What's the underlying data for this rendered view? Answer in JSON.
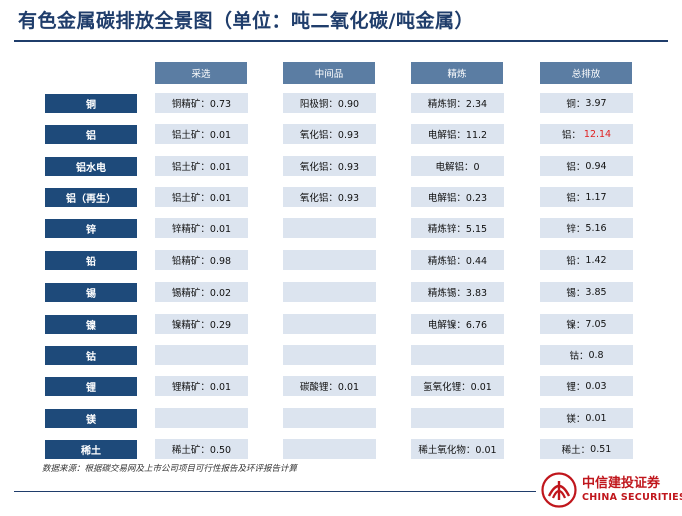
{
  "title": "有色金属碳排放全景图（单位：吨二氧化碳/吨金属）",
  "columns": [
    "采选",
    "中间品",
    "精炼",
    "总排放"
  ],
  "rows": [
    {
      "label": "铜",
      "mining": "铜精矿：0.73",
      "intermediate": "阳极铜：0.90",
      "refining": "精炼铜：2.34",
      "total_name": "铜：",
      "total_value": "3.97"
    },
    {
      "label": "铝",
      "mining": "铝土矿：0.01",
      "intermediate": "氧化铝：0.93",
      "refining": "电解铝：11.2",
      "total_name": "铝：",
      "total_value": "12.14"
    },
    {
      "label": "铝水电",
      "mining": "铝土矿：0.01",
      "intermediate": "氧化铝：0.93",
      "refining": "电解铝：0",
      "total_name": "铝：",
      "total_value": "0.94"
    },
    {
      "label": "铝（再生）",
      "mining": "铝土矿：0.01",
      "intermediate": "氧化铝：0.93",
      "refining": "电解铝：0.23",
      "total_name": "铝：",
      "total_value": "1.17"
    },
    {
      "label": "锌",
      "mining": "锌精矿：0.01",
      "intermediate": "",
      "refining": "精炼锌：5.15",
      "total_name": "锌：",
      "total_value": "5.16"
    },
    {
      "label": "铅",
      "mining": "铅精矿：0.98",
      "intermediate": "",
      "refining": "精炼铅：0.44",
      "total_name": "铅：",
      "total_value": "1.42"
    },
    {
      "label": "锡",
      "mining": "锡精矿：0.02",
      "intermediate": "",
      "refining": "精炼锡：3.83",
      "total_name": "锡：",
      "total_value": "3.85"
    },
    {
      "label": "镍",
      "mining": "镍精矿：0.29",
      "intermediate": "",
      "refining": "电解镍：6.76",
      "total_name": "镍：",
      "total_value": "7.05"
    },
    {
      "label": "钴",
      "mining": "",
      "intermediate": "",
      "refining": "",
      "total_name": "钴：",
      "total_value": "0.8"
    },
    {
      "label": "锂",
      "mining": "锂精矿：0.01",
      "intermediate": "碳酸锂：0.01",
      "refining": "氢氧化锂：0.01",
      "total_name": "锂：",
      "total_value": "0.03"
    },
    {
      "label": "镁",
      "mining": "",
      "intermediate": "",
      "refining": "",
      "total_name": "镁：",
      "total_value": "0.01"
    },
    {
      "label": "稀土",
      "mining": "稀土矿：0.50",
      "intermediate": "",
      "refining": "稀土氧化物：0.01",
      "total_name": "稀土：",
      "total_value": "0.51"
    }
  ],
  "highlight_color": "#e02020",
  "source": "数据来源：根据碳交易网及上市公司项目可行性报告及环评报告计算",
  "brand": {
    "name_cn": "中信建投证券",
    "name_en": "CHINA SECURITIES",
    "logo": "china-securities-logo"
  }
}
